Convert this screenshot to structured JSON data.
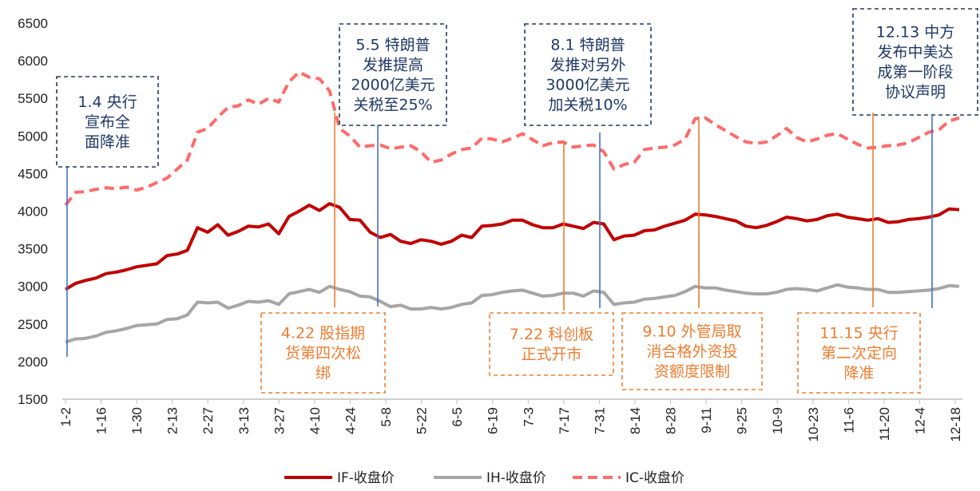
{
  "chart_data": {
    "type": "line",
    "title": "",
    "xlabel": "",
    "ylabel": "",
    "ylim": [
      1500,
      6500
    ],
    "yticks": [
      1500,
      2000,
      2500,
      3000,
      3500,
      4000,
      4500,
      5000,
      5500,
      6000,
      6500
    ],
    "xticks": [
      "1-2",
      "1-16",
      "1-30",
      "2-13",
      "2-27",
      "3-13",
      "3-27",
      "4-10",
      "4-24",
      "5-8",
      "5-22",
      "6-5",
      "6-19",
      "7-3",
      "7-17",
      "7-31",
      "8-14",
      "8-28",
      "9-11",
      "9-25",
      "10-9",
      "10-23",
      "11-6",
      "11-20",
      "12-4",
      "12-18"
    ],
    "legend_position": "bottom",
    "grid": false,
    "series": [
      {
        "name": "IF-收盘价",
        "color": "#c00000",
        "style": "solid",
        "values": [
          2960,
          3040,
          3080,
          3110,
          3170,
          3190,
          3220,
          3260,
          3280,
          3300,
          3410,
          3430,
          3480,
          3780,
          3720,
          3820,
          3680,
          3730,
          3800,
          3790,
          3830,
          3700,
          3930,
          4000,
          4080,
          4010,
          4100,
          4050,
          3890,
          3880,
          3720,
          3650,
          3690,
          3600,
          3570,
          3620,
          3600,
          3560,
          3600,
          3680,
          3650,
          3800,
          3810,
          3830,
          3880,
          3880,
          3820,
          3780,
          3780,
          3830,
          3800,
          3770,
          3850,
          3830,
          3620,
          3670,
          3680,
          3740,
          3750,
          3800,
          3840,
          3880,
          3960,
          3950,
          3930,
          3900,
          3870,
          3800,
          3780,
          3810,
          3860,
          3920,
          3900,
          3870,
          3890,
          3940,
          3960,
          3920,
          3900,
          3880,
          3900,
          3850,
          3860,
          3890,
          3900,
          3920,
          3950,
          4030,
          4020
        ]
      },
      {
        "name": "IH-收盘价",
        "color": "#a6a6a6",
        "style": "solid",
        "values": [
          2260,
          2300,
          2310,
          2340,
          2390,
          2410,
          2440,
          2480,
          2490,
          2500,
          2560,
          2570,
          2620,
          2790,
          2780,
          2790,
          2710,
          2750,
          2800,
          2790,
          2810,
          2760,
          2900,
          2930,
          2960,
          2920,
          3000,
          2960,
          2930,
          2870,
          2860,
          2800,
          2730,
          2750,
          2700,
          2700,
          2720,
          2700,
          2720,
          2760,
          2780,
          2880,
          2890,
          2920,
          2940,
          2950,
          2910,
          2870,
          2880,
          2910,
          2910,
          2870,
          2940,
          2920,
          2760,
          2780,
          2790,
          2830,
          2840,
          2860,
          2880,
          2930,
          3000,
          2980,
          2980,
          2950,
          2930,
          2910,
          2900,
          2900,
          2920,
          2960,
          2970,
          2960,
          2940,
          2980,
          3020,
          2990,
          2980,
          2960,
          2960,
          2920,
          2920,
          2930,
          2940,
          2950,
          2970,
          3010,
          3000
        ]
      },
      {
        "name": "IC-收盘价",
        "color": "#ff6b6b",
        "style": "dashed",
        "values": [
          4080,
          4250,
          4260,
          4290,
          4310,
          4300,
          4320,
          4280,
          4320,
          4380,
          4440,
          4560,
          4680,
          5050,
          5100,
          5250,
          5380,
          5400,
          5480,
          5420,
          5500,
          5450,
          5720,
          5850,
          5780,
          5760,
          5600,
          5100,
          5000,
          4850,
          4870,
          4880,
          4830,
          4850,
          4870,
          4790,
          4650,
          4680,
          4760,
          4820,
          4840,
          4970,
          4960,
          4920,
          4970,
          5030,
          4950,
          4870,
          4910,
          4920,
          4850,
          4870,
          4880,
          4790,
          4560,
          4620,
          4650,
          4820,
          4840,
          4850,
          4880,
          4960,
          5230,
          5240,
          5150,
          5070,
          4990,
          4920,
          4900,
          4920,
          5000,
          5100,
          4980,
          4920,
          4960,
          5010,
          5030,
          4960,
          4890,
          4840,
          4850,
          4870,
          4880,
          4910,
          4980,
          5050,
          5080,
          5200,
          5240
        ]
      }
    ],
    "annotations": [
      {
        "text": [
          "1.4 央行",
          "宣布全",
          "面降准"
        ],
        "color": "#1f3864",
        "box_style": "dashed",
        "line_color": "#4472c4",
        "line_at": "1-4"
      },
      {
        "text": [
          "5.5 特朗普",
          "发推提高",
          "2000亿美元",
          "关税至25%"
        ],
        "color": "#1f3864",
        "box_style": "dashed",
        "line_color": "#4472c4",
        "line_at": "5-5"
      },
      {
        "text": [
          "8.1 特朗普",
          "发推对另外",
          "3000亿美元",
          "加关税10%"
        ],
        "color": "#1f3864",
        "box_style": "dashed",
        "line_color": "#4472c4",
        "line_at": "8-1"
      },
      {
        "text": [
          "12.13 中方",
          "发布中美达",
          "成第一阶段",
          "协议声明"
        ],
        "color": "#1f3864",
        "box_style": "dashed",
        "line_color": "#4472c4",
        "line_at": "12-13"
      },
      {
        "text": [
          "4.22 股指期",
          "货第四次松",
          "绑"
        ],
        "color": "#ed7d31",
        "box_style": "dashed",
        "line_color": "#ed7d31",
        "line_at": "4-22"
      },
      {
        "text": [
          "7.22 科创板",
          "正式开市"
        ],
        "color": "#ed7d31",
        "box_style": "dashed",
        "line_color": "#ed7d31",
        "line_at": "7-22"
      },
      {
        "text": [
          "9.10 外管局取",
          "消合格外资投",
          "资额度限制"
        ],
        "color": "#ed7d31",
        "box_style": "dashed",
        "line_color": "#ed7d31",
        "line_at": "9-10"
      },
      {
        "text": [
          "11.15 央行",
          "第二次定向",
          "降准"
        ],
        "color": "#ed7d31",
        "box_style": "dashed",
        "line_color": "#ed7d31",
        "line_at": "11-15"
      }
    ]
  }
}
